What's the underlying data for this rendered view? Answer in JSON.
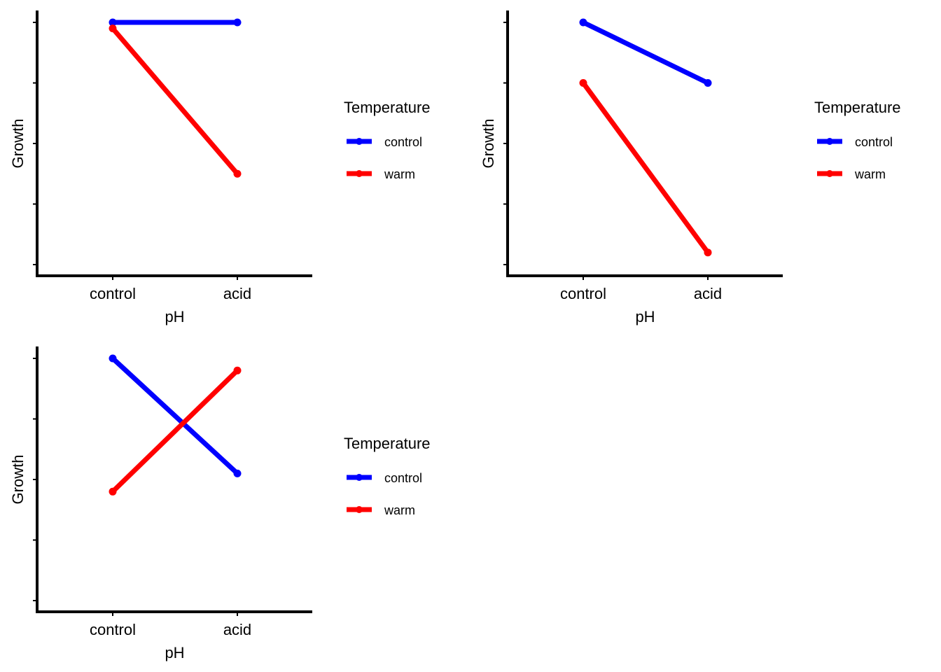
{
  "chart_data": [
    {
      "type": "line",
      "xlabel": "pH",
      "ylabel": "Growth",
      "categories": [
        "control",
        "acid"
      ],
      "ylim": [
        -0.2,
        4.2
      ],
      "y_ticks": [
        0,
        1,
        2,
        3,
        4
      ],
      "y_tick_labels_shown": false,
      "legend": {
        "title": "Temperature",
        "position": "right"
      },
      "series": [
        {
          "name": "control",
          "color": "#0000FF",
          "values": [
            4.0,
            4.0
          ]
        },
        {
          "name": "warm",
          "color": "#FF0000",
          "values": [
            3.9,
            1.5
          ]
        }
      ]
    },
    {
      "type": "line",
      "xlabel": "pH",
      "ylabel": "Growth",
      "categories": [
        "control",
        "acid"
      ],
      "ylim": [
        -0.2,
        4.2
      ],
      "y_ticks": [
        0,
        1,
        2,
        3,
        4
      ],
      "y_tick_labels_shown": false,
      "legend": {
        "title": "Temperature",
        "position": "right"
      },
      "series": [
        {
          "name": "control",
          "color": "#0000FF",
          "values": [
            4.0,
            3.0
          ]
        },
        {
          "name": "warm",
          "color": "#FF0000",
          "values": [
            3.0,
            0.2
          ]
        }
      ]
    },
    {
      "type": "line",
      "xlabel": "pH",
      "ylabel": "Growth",
      "categories": [
        "control",
        "acid"
      ],
      "ylim": [
        -0.2,
        4.2
      ],
      "y_ticks": [
        0,
        1,
        2,
        3,
        4
      ],
      "y_tick_labels_shown": false,
      "legend": {
        "title": "Temperature",
        "position": "right"
      },
      "series": [
        {
          "name": "control",
          "color": "#0000FF",
          "values": [
            4.0,
            2.1
          ]
        },
        {
          "name": "warm",
          "color": "#FF0000",
          "values": [
            1.8,
            3.8
          ]
        }
      ]
    }
  ]
}
